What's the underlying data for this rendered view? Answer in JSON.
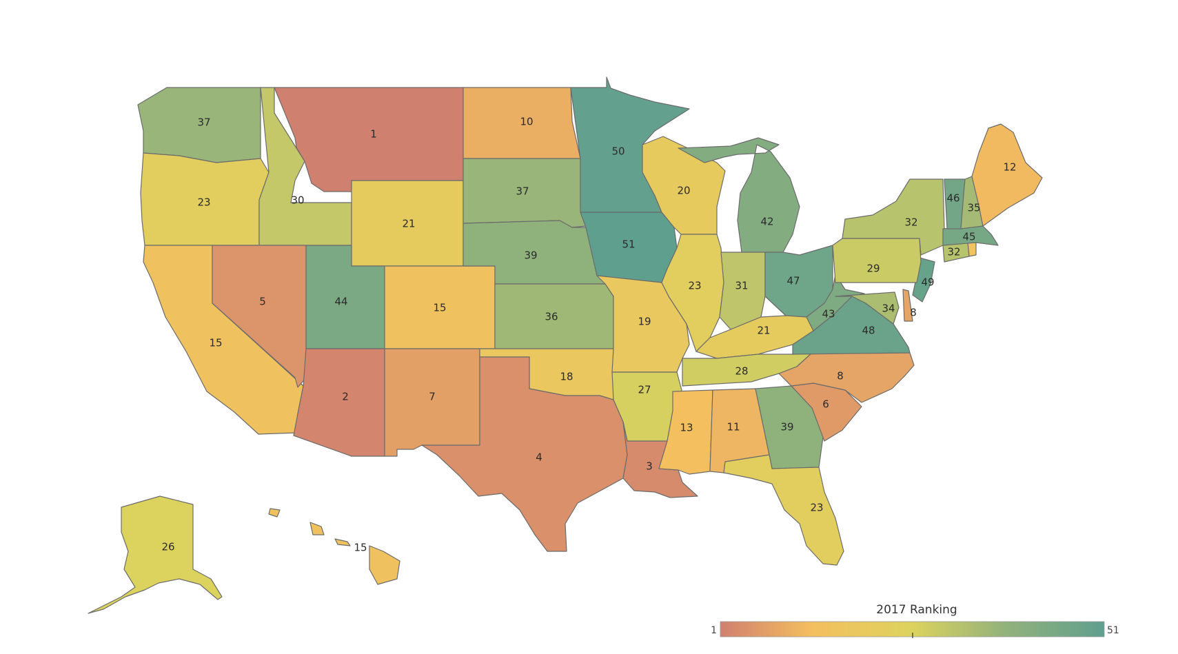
{
  "legend": {
    "title": "2017 Ranking",
    "min_label": "1",
    "max_label": "51"
  },
  "color_scale": {
    "min": 1,
    "max": 51,
    "stops": [
      {
        "v": 1,
        "c": "#d0806f"
      },
      {
        "v": 13,
        "c": "#f4bf5f"
      },
      {
        "v": 26,
        "c": "#dcd35e"
      },
      {
        "v": 38,
        "c": "#93b27b"
      },
      {
        "v": 51,
        "c": "#5f9f8e"
      }
    ]
  },
  "states": [
    {
      "id": "WA",
      "rank": "37"
    },
    {
      "id": "OR",
      "rank": "23"
    },
    {
      "id": "CA",
      "rank": "15"
    },
    {
      "id": "ID",
      "rank": "30"
    },
    {
      "id": "NV",
      "rank": "5"
    },
    {
      "id": "MT",
      "rank": "1"
    },
    {
      "id": "WY",
      "rank": "21"
    },
    {
      "id": "UT",
      "rank": "44"
    },
    {
      "id": "AZ",
      "rank": "2"
    },
    {
      "id": "CO",
      "rank": "15"
    },
    {
      "id": "NM",
      "rank": "7"
    },
    {
      "id": "ND",
      "rank": "10"
    },
    {
      "id": "SD",
      "rank": "37"
    },
    {
      "id": "NE",
      "rank": "39"
    },
    {
      "id": "KS",
      "rank": "36"
    },
    {
      "id": "OK",
      "rank": "18"
    },
    {
      "id": "TX",
      "rank": "4"
    },
    {
      "id": "MN",
      "rank": "50"
    },
    {
      "id": "IA",
      "rank": "51"
    },
    {
      "id": "MO",
      "rank": "19"
    },
    {
      "id": "AR",
      "rank": "27"
    },
    {
      "id": "LA",
      "rank": "3"
    },
    {
      "id": "WI",
      "rank": "20"
    },
    {
      "id": "IL",
      "rank": "23"
    },
    {
      "id": "MI",
      "rank": "42"
    },
    {
      "id": "IN",
      "rank": "31"
    },
    {
      "id": "OH",
      "rank": "47"
    },
    {
      "id": "KY",
      "rank": "21"
    },
    {
      "id": "TN",
      "rank": "28"
    },
    {
      "id": "MS",
      "rank": "13"
    },
    {
      "id": "AL",
      "rank": "11"
    },
    {
      "id": "GA",
      "rank": "39"
    },
    {
      "id": "FL",
      "rank": "23"
    },
    {
      "id": "SC",
      "rank": "6"
    },
    {
      "id": "NC",
      "rank": "8"
    },
    {
      "id": "VA",
      "rank": "48"
    },
    {
      "id": "WV",
      "rank": "43"
    },
    {
      "id": "MD",
      "rank": "34"
    },
    {
      "id": "DE",
      "rank": "8"
    },
    {
      "id": "NJ",
      "rank": "49"
    },
    {
      "id": "PA",
      "rank": "29"
    },
    {
      "id": "NY",
      "rank": "32"
    },
    {
      "id": "CT",
      "rank": "32"
    },
    {
      "id": "RI",
      "rank": ""
    },
    {
      "id": "MA",
      "rank": "45"
    },
    {
      "id": "VT",
      "rank": "46"
    },
    {
      "id": "NH",
      "rank": "35"
    },
    {
      "id": "ME",
      "rank": "12"
    },
    {
      "id": "AK",
      "rank": "26"
    },
    {
      "id": "HI",
      "rank": "15"
    }
  ]
}
